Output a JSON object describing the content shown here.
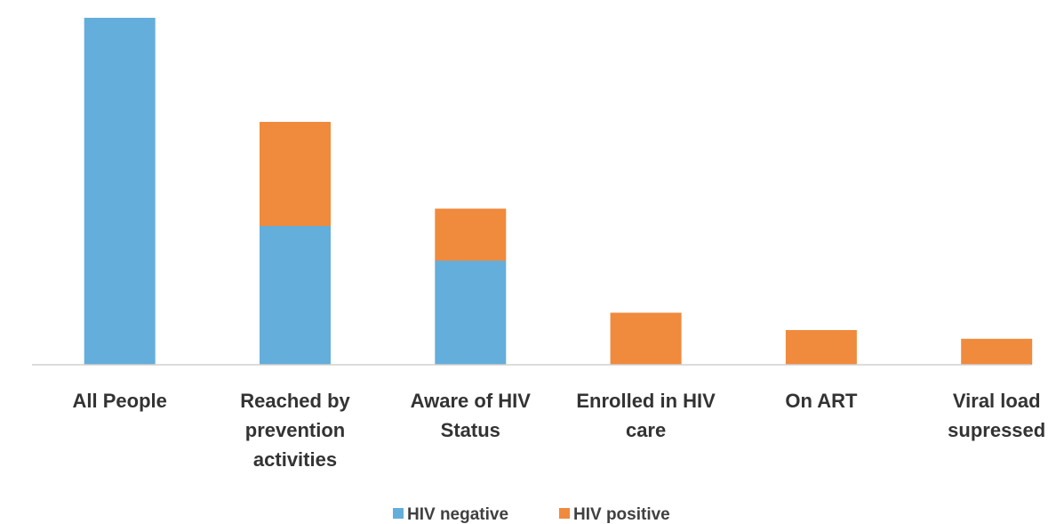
{
  "chart_data": {
    "type": "bar",
    "stacked": true,
    "categories": [
      [
        "All People"
      ],
      [
        "Reached by",
        "prevention",
        "activities"
      ],
      [
        "Aware of HIV",
        "Status"
      ],
      [
        "Enrolled in HIV",
        "care"
      ],
      [
        "On ART"
      ],
      [
        "Viral load",
        "supressed"
      ]
    ],
    "series": [
      {
        "name": "HIV negative",
        "color": "#64aedb",
        "values": [
          100,
          40,
          30,
          0,
          0,
          0
        ]
      },
      {
        "name": "HIV positive",
        "color": "#f08a3c",
        "values": [
          0,
          30,
          15,
          15,
          10,
          7.5
        ]
      }
    ],
    "ylim": [
      0,
      100
    ],
    "grid": false,
    "legend": "bottom-center",
    "axis_color": "#d0d0d0"
  }
}
